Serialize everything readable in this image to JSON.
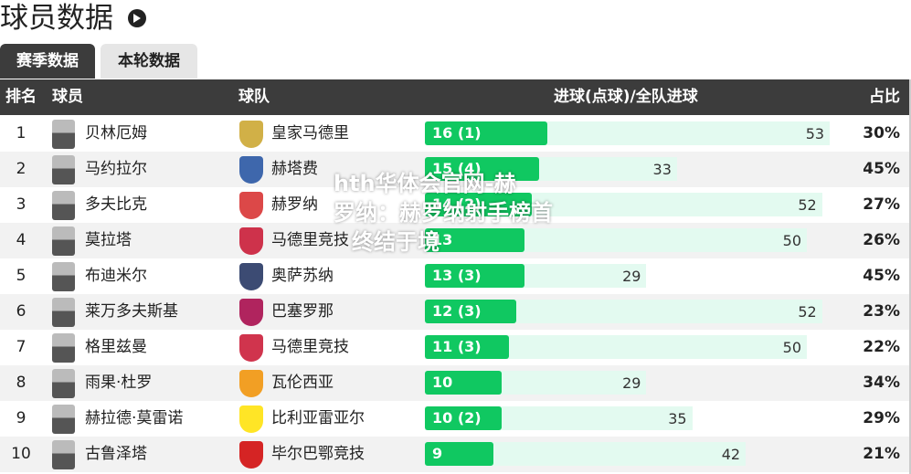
{
  "header": {
    "title": "球员数据"
  },
  "tabs": [
    "赛季数据",
    "本轮数据"
  ],
  "table": {
    "columns": [
      "排名",
      "球员",
      "球队",
      "进球(点球)/全队进球",
      "占比"
    ],
    "rows": [
      {
        "rank": "1",
        "player": "贝林厄姆",
        "team": "皇家马德里",
        "goals": 16,
        "goals_label": "16 (1)",
        "team_goals": 53,
        "share": "30%"
      },
      {
        "rank": "2",
        "player": "马约拉尔",
        "team": "赫塔费",
        "goals": 15,
        "goals_label": "15 (4)",
        "team_goals": 33,
        "share": "45%"
      },
      {
        "rank": "3",
        "player": "多夫比克",
        "team": "赫罗纳",
        "goals": 14,
        "goals_label": "14 (2)",
        "team_goals": 52,
        "share": "27%"
      },
      {
        "rank": "4",
        "player": "莫拉塔",
        "team": "马德里竞技",
        "goals": 13,
        "goals_label": "13",
        "team_goals": 50,
        "share": "26%"
      },
      {
        "rank": "5",
        "player": "布迪米尔",
        "team": "奥萨苏纳",
        "goals": 13,
        "goals_label": "13 (3)",
        "team_goals": 29,
        "share": "45%"
      },
      {
        "rank": "6",
        "player": "莱万多夫斯基",
        "team": "巴塞罗那",
        "goals": 12,
        "goals_label": "12 (3)",
        "team_goals": 52,
        "share": "23%"
      },
      {
        "rank": "7",
        "player": "格里兹曼",
        "team": "马德里竞技",
        "goals": 11,
        "goals_label": "11 (3)",
        "team_goals": 50,
        "share": "22%"
      },
      {
        "rank": "8",
        "player": "雨果·杜罗",
        "team": "瓦伦西亚",
        "goals": 10,
        "goals_label": "10",
        "team_goals": 29,
        "share": "34%"
      },
      {
        "rank": "9",
        "player": "赫拉德·莫雷诺",
        "team": "比利亚雷亚尔",
        "goals": 10,
        "goals_label": "10 (2)",
        "team_goals": 35,
        "share": "29%"
      },
      {
        "rank": "10",
        "player": "古鲁泽塔",
        "team": "毕尔巴鄂竞技",
        "goals": 9,
        "goals_label": "9",
        "team_goals": 42,
        "share": "21%"
      }
    ]
  },
  "watermark": [
    "hth华体会官网-赫",
    "罗纳：赫罗纳射手榜首",
    "终结于境"
  ]
}
